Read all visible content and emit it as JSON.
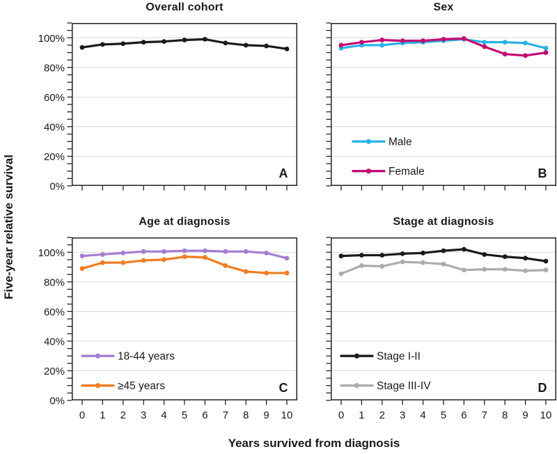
{
  "figure": {
    "ylabel": "Five-year relative survival",
    "xlabel": "Years survived from diagnosis",
    "colors": {
      "axis": "#222222",
      "gridline": "#d8d8d8",
      "black_series": "#1a1a1a",
      "male": "#29b2e5",
      "female": "#c30b72",
      "age_young": "#a47dd1",
      "age_old": "#f07d22",
      "stage_late": "#acacac"
    }
  },
  "chart_data": [
    {
      "type": "line",
      "panel_letter": "A",
      "title": "Overall cohort",
      "x": [
        0,
        1,
        2,
        3,
        4,
        5,
        6,
        7,
        8,
        9,
        10
      ],
      "ylim": [
        0,
        110
      ],
      "yticks_labeled": [
        0,
        20,
        40,
        60,
        80,
        100
      ],
      "ytick_suffix": "%",
      "grid": "horizontal",
      "show_ytick_labels": true,
      "show_xtick_labels": false,
      "show_legend": false,
      "legend_indent": 0,
      "series": [
        {
          "name": "Overall cohort",
          "color": "#1a1a1a",
          "values": [
            93.5,
            95.5,
            96,
            97,
            97.5,
            98.5,
            99,
            96.5,
            95,
            94.5,
            92.5
          ]
        }
      ]
    },
    {
      "type": "line",
      "panel_letter": "B",
      "title": "Sex",
      "x": [
        0,
        1,
        2,
        3,
        4,
        5,
        6,
        7,
        8,
        9,
        10
      ],
      "ylim": [
        0,
        110
      ],
      "yticks_labeled": [
        0,
        20,
        40,
        60,
        80,
        100
      ],
      "ytick_suffix": "%",
      "grid": "horizontal",
      "show_ytick_labels": false,
      "show_xtick_labels": false,
      "show_legend": true,
      "legend_position": "lower-left",
      "legend_indent": 32,
      "series": [
        {
          "name": "Male",
          "color": "#29b2e5",
          "values": [
            93,
            95,
            95,
            96.5,
            97,
            98,
            99,
            97,
            97,
            96.5,
            93
          ]
        },
        {
          "name": "Female",
          "color": "#c30b72",
          "values": [
            95,
            97,
            98.5,
            98,
            98,
            99,
            99.5,
            94,
            89,
            88,
            90
          ]
        }
      ]
    },
    {
      "type": "line",
      "panel_letter": "C",
      "title": "Age at diagnosis",
      "x": [
        0,
        1,
        2,
        3,
        4,
        5,
        6,
        7,
        8,
        9,
        10
      ],
      "ylim": [
        0,
        110
      ],
      "yticks_labeled": [
        0,
        20,
        40,
        60,
        80,
        100
      ],
      "ytick_suffix": "%",
      "grid": "horizontal",
      "show_ytick_labels": true,
      "show_xtick_labels": true,
      "show_legend": true,
      "legend_position": "lower-left",
      "legend_indent": 15,
      "series": [
        {
          "name": "18-44 years",
          "color": "#a47dd1",
          "values": [
            97.5,
            98.5,
            99.5,
            100.5,
            100.5,
            101,
            101,
            100.5,
            100.5,
            99.5,
            96
          ]
        },
        {
          "name": "≥45 years",
          "color": "#f07d22",
          "values": [
            89,
            93,
            93,
            94.5,
            95,
            97,
            96.5,
            91,
            87,
            86,
            86
          ]
        }
      ]
    },
    {
      "type": "line",
      "panel_letter": "D",
      "title": "Stage at diagnosis",
      "x": [
        0,
        1,
        2,
        3,
        4,
        5,
        6,
        7,
        8,
        9,
        10
      ],
      "ylim": [
        0,
        110
      ],
      "yticks_labeled": [
        0,
        20,
        40,
        60,
        80,
        100
      ],
      "ytick_suffix": "%",
      "grid": "horizontal",
      "show_ytick_labels": false,
      "show_xtick_labels": true,
      "show_legend": true,
      "legend_position": "lower-left",
      "legend_indent": 15,
      "series": [
        {
          "name": "Stage I-II",
          "color": "#1a1a1a",
          "values": [
            97.5,
            98,
            98,
            99,
            99.5,
            101,
            102,
            98.5,
            97,
            96,
            94
          ]
        },
        {
          "name": "Stage III-IV",
          "color": "#acacac",
          "values": [
            85.5,
            91,
            90.5,
            93.5,
            93,
            92,
            88,
            88.5,
            88.5,
            87.5,
            88
          ]
        }
      ]
    }
  ]
}
